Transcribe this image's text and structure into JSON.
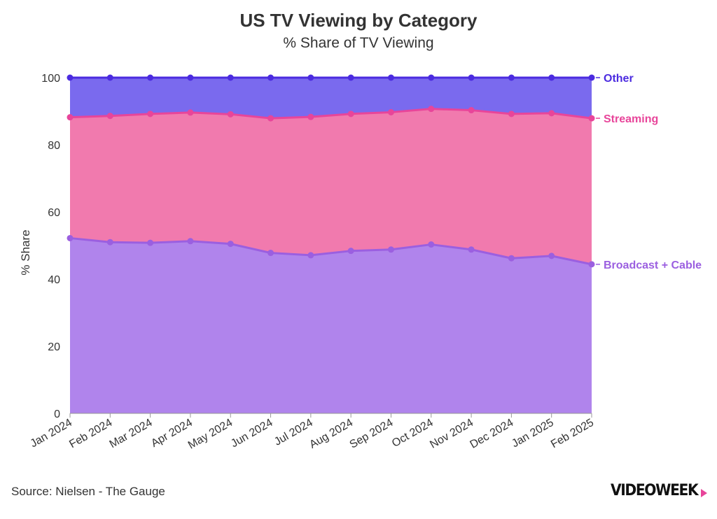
{
  "title": "US TV Viewing by Category",
  "subtitle": "% Share of TV Viewing",
  "source": "Source: Nielsen - The Gauge",
  "logo": {
    "text": "VIDEOWEEK",
    "accent_color": "#e8459a"
  },
  "chart_data": {
    "type": "area",
    "stacked": true,
    "title": "US TV Viewing by Category",
    "subtitle": "% Share of TV Viewing",
    "xlabel": "",
    "ylabel": "% Share",
    "ylim": [
      0,
      100
    ],
    "yticks": [
      0,
      20,
      40,
      60,
      80,
      100
    ],
    "grid": true,
    "legend_placement": "right (direct labels at series ends)",
    "categories": [
      "Jan 2024",
      "Feb 2024",
      "Mar 2024",
      "Apr 2024",
      "May 2024",
      "Jun 2024",
      "Jul 2024",
      "Aug 2024",
      "Sep 2024",
      "Oct 2024",
      "Nov 2024",
      "Dec 2024",
      "Jan 2025",
      "Feb 2025"
    ],
    "series": [
      {
        "name": "Broadcast + Cable",
        "values": [
          52.2,
          51.0,
          50.8,
          51.3,
          50.5,
          47.8,
          47.1,
          48.4,
          48.8,
          50.3,
          48.8,
          46.2,
          46.9,
          44.4
        ],
        "color": "#9b5fe0",
        "fill": "#b084ec"
      },
      {
        "name": "Streaming",
        "values": [
          36.0,
          37.6,
          38.4,
          38.3,
          38.6,
          40.1,
          41.2,
          40.8,
          40.9,
          40.4,
          41.5,
          43.0,
          42.5,
          43.5
        ],
        "color": "#e8459a",
        "fill": "#f17aae"
      },
      {
        "name": "Other",
        "values": [
          11.8,
          11.4,
          10.8,
          10.4,
          10.9,
          12.1,
          11.7,
          10.8,
          10.3,
          9.3,
          9.7,
          10.8,
          10.6,
          12.1
        ],
        "color": "#4b2be0",
        "fill": "#7a6aee"
      }
    ]
  }
}
